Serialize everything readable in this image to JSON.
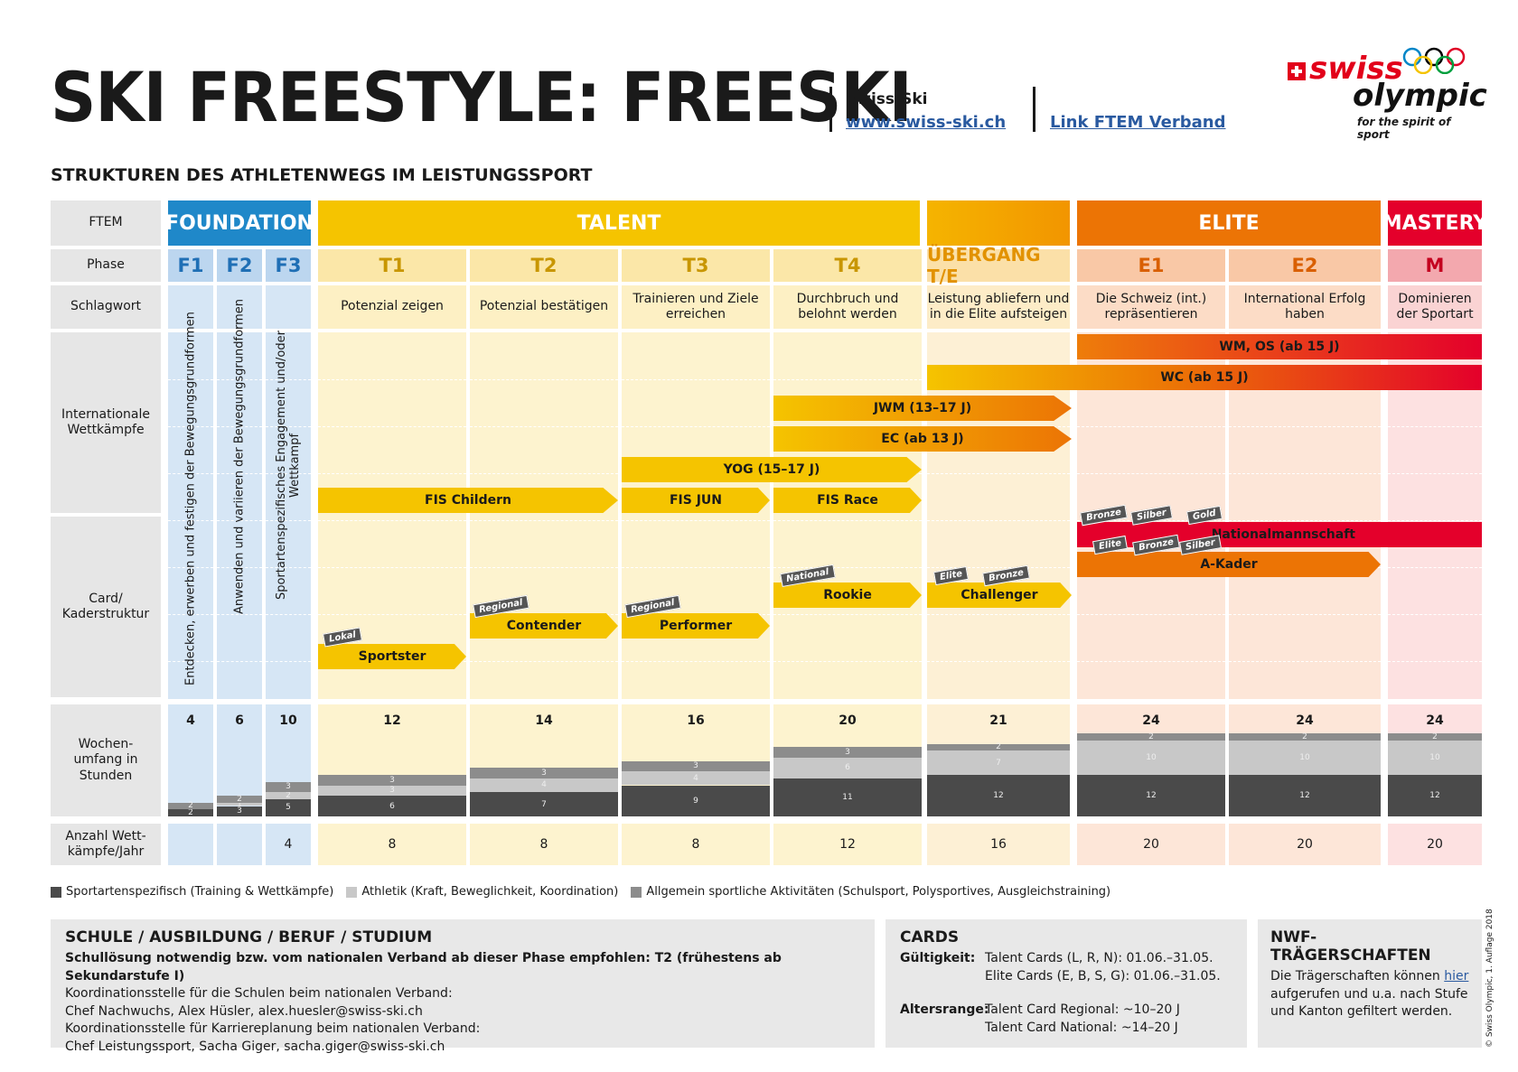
{
  "title": "SKI FREESTYLE: FREESKI",
  "subtitle": "STRUKTUREN DES ATHLETENWEGS IM LEISTUNGSSPORT",
  "header": {
    "org": "Swiss-Ski",
    "org_link": "www.swiss-ski.ch",
    "ftem_link": "Link FTEM Verband"
  },
  "logo": {
    "swiss": "swiss",
    "olympic": "olympic",
    "tagline": "for the spirit of sport"
  },
  "row_labels": {
    "ftem": "FTEM",
    "phase": "Phase",
    "keyword": "Schlagwort",
    "intl": "Internationale Wettkämpfe",
    "card": "Card/ Kaderstruktur",
    "weekly": "Wochen-umfang in Stunden",
    "comps": "Anzahl Wett-kämpfe/Jahr"
  },
  "ftem": {
    "foundation": "FOUNDATION",
    "talent": "TALENT",
    "elite": "ELITE",
    "mastery": "MASTERY"
  },
  "phases": [
    "F1",
    "F2",
    "F3",
    "T1",
    "T2",
    "T3",
    "T4",
    "ÜBERGANG T/E",
    "E1",
    "E2",
    "M"
  ],
  "keywords": [
    "",
    "",
    "",
    "Potenzial zeigen",
    "Potenzial bestätigen",
    "Trainieren und Ziele erreichen",
    "Durchbruch und belohnt werden",
    "Leistung abliefern und in die Elite aufsteigen",
    "Die Schweiz (int.) repräsentieren",
    "International Erfolg haben",
    "Dominieren der Sportart"
  ],
  "foundation_vertical": [
    "Entdecken, erwerben und festigen der Bewegungsgrundformen",
    "Anwenden und variieren der Bewegungsgrundformen",
    "Sportartenspezifisches Engagement und/oder Wettkampf"
  ],
  "competitions": {
    "wm": "WM, OS (ab 15 J)",
    "wc": "WC (ab 15 J)",
    "jwm": "JWM (13–17 J)",
    "ec": "EC (ab 13 J)",
    "yog": "YOG (15–17 J)",
    "fis_children": "FIS Childern",
    "fis_jun": "FIS JUN",
    "fis_race": "FIS Race"
  },
  "cards": {
    "national_team": "Nationalmannschaft",
    "a_kader": "A-Kader",
    "challenger": "Challenger",
    "rookie": "Rookie",
    "performer": "Performer",
    "contender": "Contender",
    "sportster": "Sportster",
    "tags": {
      "nm_bronze": "Bronze",
      "nm_silber": "Silber",
      "nm_gold": "Gold",
      "ak_elite": "Elite",
      "ak_bronze": "Bronze",
      "ak_silber": "Silber",
      "ch_elite": "Elite",
      "ch_bronze": "Bronze",
      "rookie": "National",
      "performer": "Regional",
      "contender": "Regional",
      "sportster": "Lokal"
    }
  },
  "weekly_totals": [
    "4",
    "6",
    "10",
    "12",
    "14",
    "16",
    "20",
    "21",
    "24",
    "24",
    "24"
  ],
  "weekly_segments": [
    {
      "spec": 2,
      "ath": 0,
      "gen": 2
    },
    {
      "spec": 3,
      "ath": 1,
      "gen": 2
    },
    {
      "spec": 5,
      "ath": 2,
      "gen": 3
    },
    {
      "spec": 6,
      "ath": 3,
      "gen": 3
    },
    {
      "spec": 7,
      "ath": 4,
      "gen": 3
    },
    {
      "spec": 9,
      "ath": 4,
      "gen": 3
    },
    {
      "spec": 11,
      "ath": 6,
      "gen": 3
    },
    {
      "spec": 12,
      "ath": 7,
      "gen": 2
    },
    {
      "spec": 12,
      "ath": 10,
      "gen": 2
    },
    {
      "spec": 12,
      "ath": 10,
      "gen": 2
    },
    {
      "spec": 12,
      "ath": 10,
      "gen": 2
    }
  ],
  "competitions_per_year": [
    "",
    "",
    "4",
    "8",
    "8",
    "8",
    "12",
    "16",
    "20",
    "20",
    "20"
  ],
  "legend": {
    "spec": "Sportartenspezifisch (Training & Wettkämpfe)",
    "ath": "Athletik (Kraft, Beweglichkeit, Koordination)",
    "gen": "Allgemein sportliche Aktivitäten (Schulsport, Polysportives, Ausgleichstraining)"
  },
  "school": {
    "title": "SCHULE / AUSBILDUNG / BERUF / STUDIUM",
    "line1": "Schullösung notwendig bzw. vom nationalen Verband ab dieser Phase empfohlen: T2 (frühestens ab Sekundarstufe I)",
    "line2": "Koordinationsstelle für die Schulen beim nationalen Verband:",
    "line3": "Chef Nachwuchs, Alex Hüsler, alex.huesler@swiss-ski.ch",
    "line4": "Koordinationsstelle für Karriereplanung beim nationalen Verband:",
    "line5": "Chef Leistungssport, Sacha Giger, sacha.giger@swiss-ski.ch"
  },
  "cards_box": {
    "title": "CARDS",
    "validity_label": "Gültigkeit:",
    "validity1": "Talent Cards (L, R, N): 01.06.–31.05.",
    "validity2": "Elite Cards (E, B, S, G): 01.06.–31.05.",
    "age_label": "Altersrange:",
    "age1": "Talent Card Regional: ~10–20 J",
    "age2": "Talent Card National: ~14–20 J"
  },
  "nwf": {
    "title": "NWF-TRÄGERSCHAFTEN",
    "text_before": "Die Trägerschaften können ",
    "link": "hier",
    "text_after": "aufgerufen und u.a. nach Stufe und Kanton gefiltert werden."
  },
  "copyright": "© Swiss Olympic, 1. Auflage 2018",
  "colors": {
    "foundation": "#1f88c9",
    "talent": "#f5c400",
    "transition": "#f2a300",
    "elite": "#ec7405",
    "mastery": "#e4002b",
    "spec": "#4a4a4a",
    "ath": "#c8c8c8",
    "gen": "#8c8c8c"
  }
}
